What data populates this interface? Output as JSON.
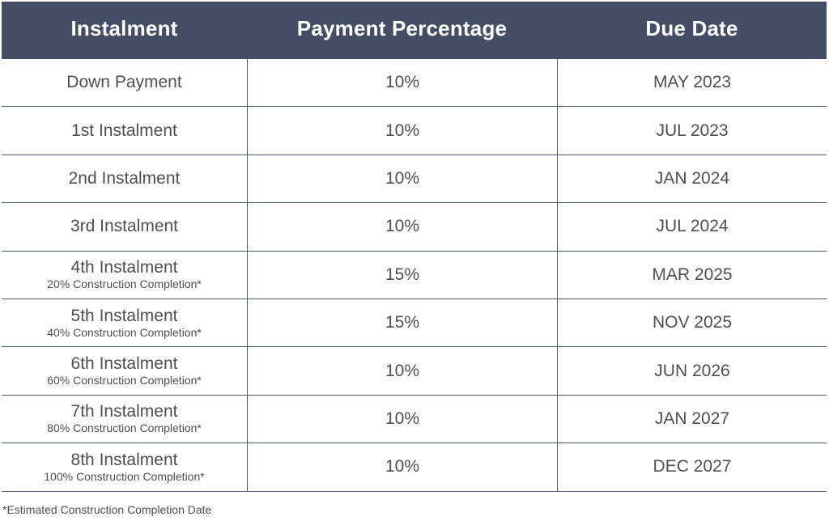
{
  "table": {
    "headers": {
      "instalment": "Instalment",
      "percentage": "Payment Percentage",
      "due_date": "Due Date"
    },
    "rows": [
      {
        "name": "Down Payment",
        "note": "",
        "percentage": "10%",
        "due": "MAY 2023"
      },
      {
        "name": "1st Instalment",
        "note": "",
        "percentage": "10%",
        "due": "JUL 2023"
      },
      {
        "name": "2nd Instalment",
        "note": "",
        "percentage": "10%",
        "due": "JAN 2024"
      },
      {
        "name": "3rd Instalment",
        "note": "",
        "percentage": "10%",
        "due": "JUL 2024"
      },
      {
        "name": "4th Instalment",
        "note": "20% Construction Completion*",
        "percentage": "15%",
        "due": "MAR 2025"
      },
      {
        "name": "5th Instalment",
        "note": "40% Construction Completion*",
        "percentage": "15%",
        "due": "NOV 2025"
      },
      {
        "name": "6th Instalment",
        "note": "60% Construction Completion*",
        "percentage": "10%",
        "due": "JUN 2026"
      },
      {
        "name": "7th Instalment",
        "note": "80% Construction Completion*",
        "percentage": "10%",
        "due": "JAN 2027"
      },
      {
        "name": "8th Instalment",
        "note": "100% Construction Completion*",
        "percentage": "10%",
        "due": "DEC 2027"
      }
    ]
  },
  "footnote": "*Estimated Construction Completion Date",
  "colors": {
    "header_background": "#434e64",
    "header_text": "#ffffff",
    "body_text": "#4f4f4f",
    "grid_lines": "#4a5a74"
  }
}
